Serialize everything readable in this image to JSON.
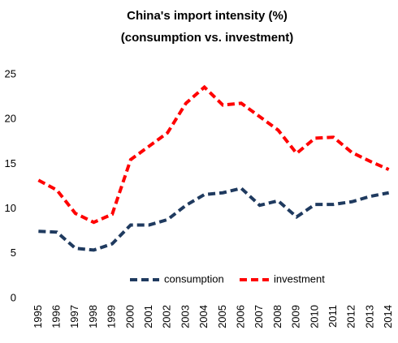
{
  "chart_data": {
    "type": "line",
    "title": "China's import intensity  (%)",
    "subtitle": "(consumption vs. investment)",
    "categories": [
      "1995",
      "1996",
      "1997",
      "1998",
      "1999",
      "2000",
      "2001",
      "2002",
      "2003",
      "2004",
      "2005",
      "2006",
      "2007",
      "2008",
      "2009",
      "2010",
      "2011",
      "2012",
      "2013",
      "2014"
    ],
    "series": [
      {
        "name": "consumption",
        "color": "#1f3a5f",
        "values": [
          7.5,
          7.4,
          5.6,
          5.4,
          6.1,
          8.2,
          8.2,
          8.8,
          10.4,
          11.6,
          11.8,
          12.3,
          10.4,
          10.9,
          9.1,
          10.5,
          10.5,
          10.8,
          11.4,
          11.8
        ]
      },
      {
        "name": "investment",
        "color": "#ff0000",
        "values": [
          13.2,
          12.1,
          9.5,
          8.5,
          9.4,
          15.5,
          17.0,
          18.5,
          21.8,
          23.6,
          21.6,
          21.8,
          20.3,
          18.8,
          16.2,
          17.9,
          18.0,
          16.3,
          15.3,
          14.4
        ]
      }
    ],
    "ylim": [
      0,
      25
    ],
    "yticks": [
      0,
      5,
      10,
      15,
      20,
      25
    ],
    "grid": false,
    "legend": "bottom"
  }
}
